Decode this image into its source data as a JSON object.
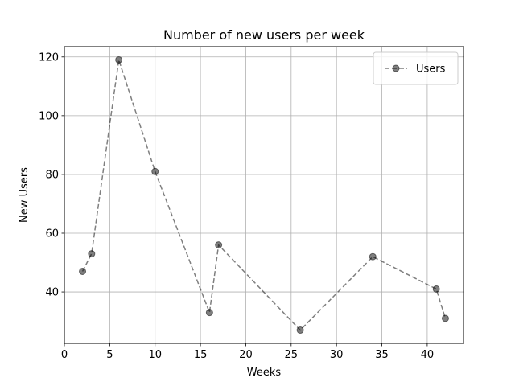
{
  "chart_data": {
    "type": "line",
    "title": "Number of new users per week",
    "xlabel": "Weeks",
    "ylabel": "New Users",
    "xlim": [
      0,
      44
    ],
    "ylim": [
      22.5,
      123.5
    ],
    "xticks": [
      0,
      5,
      10,
      15,
      20,
      25,
      30,
      35,
      40
    ],
    "yticks": [
      40,
      60,
      80,
      100,
      120
    ],
    "grid": true,
    "legend_position": "top-right",
    "series": [
      {
        "name": "Users",
        "color": "#000000",
        "opacity": 0.5,
        "line_style": "dashed",
        "marker": "circle",
        "x": [
          2,
          3,
          6,
          10,
          16,
          17,
          26,
          34,
          41,
          42
        ],
        "y": [
          47,
          53,
          119,
          81,
          33,
          56,
          27,
          52,
          41,
          31
        ]
      }
    ]
  }
}
